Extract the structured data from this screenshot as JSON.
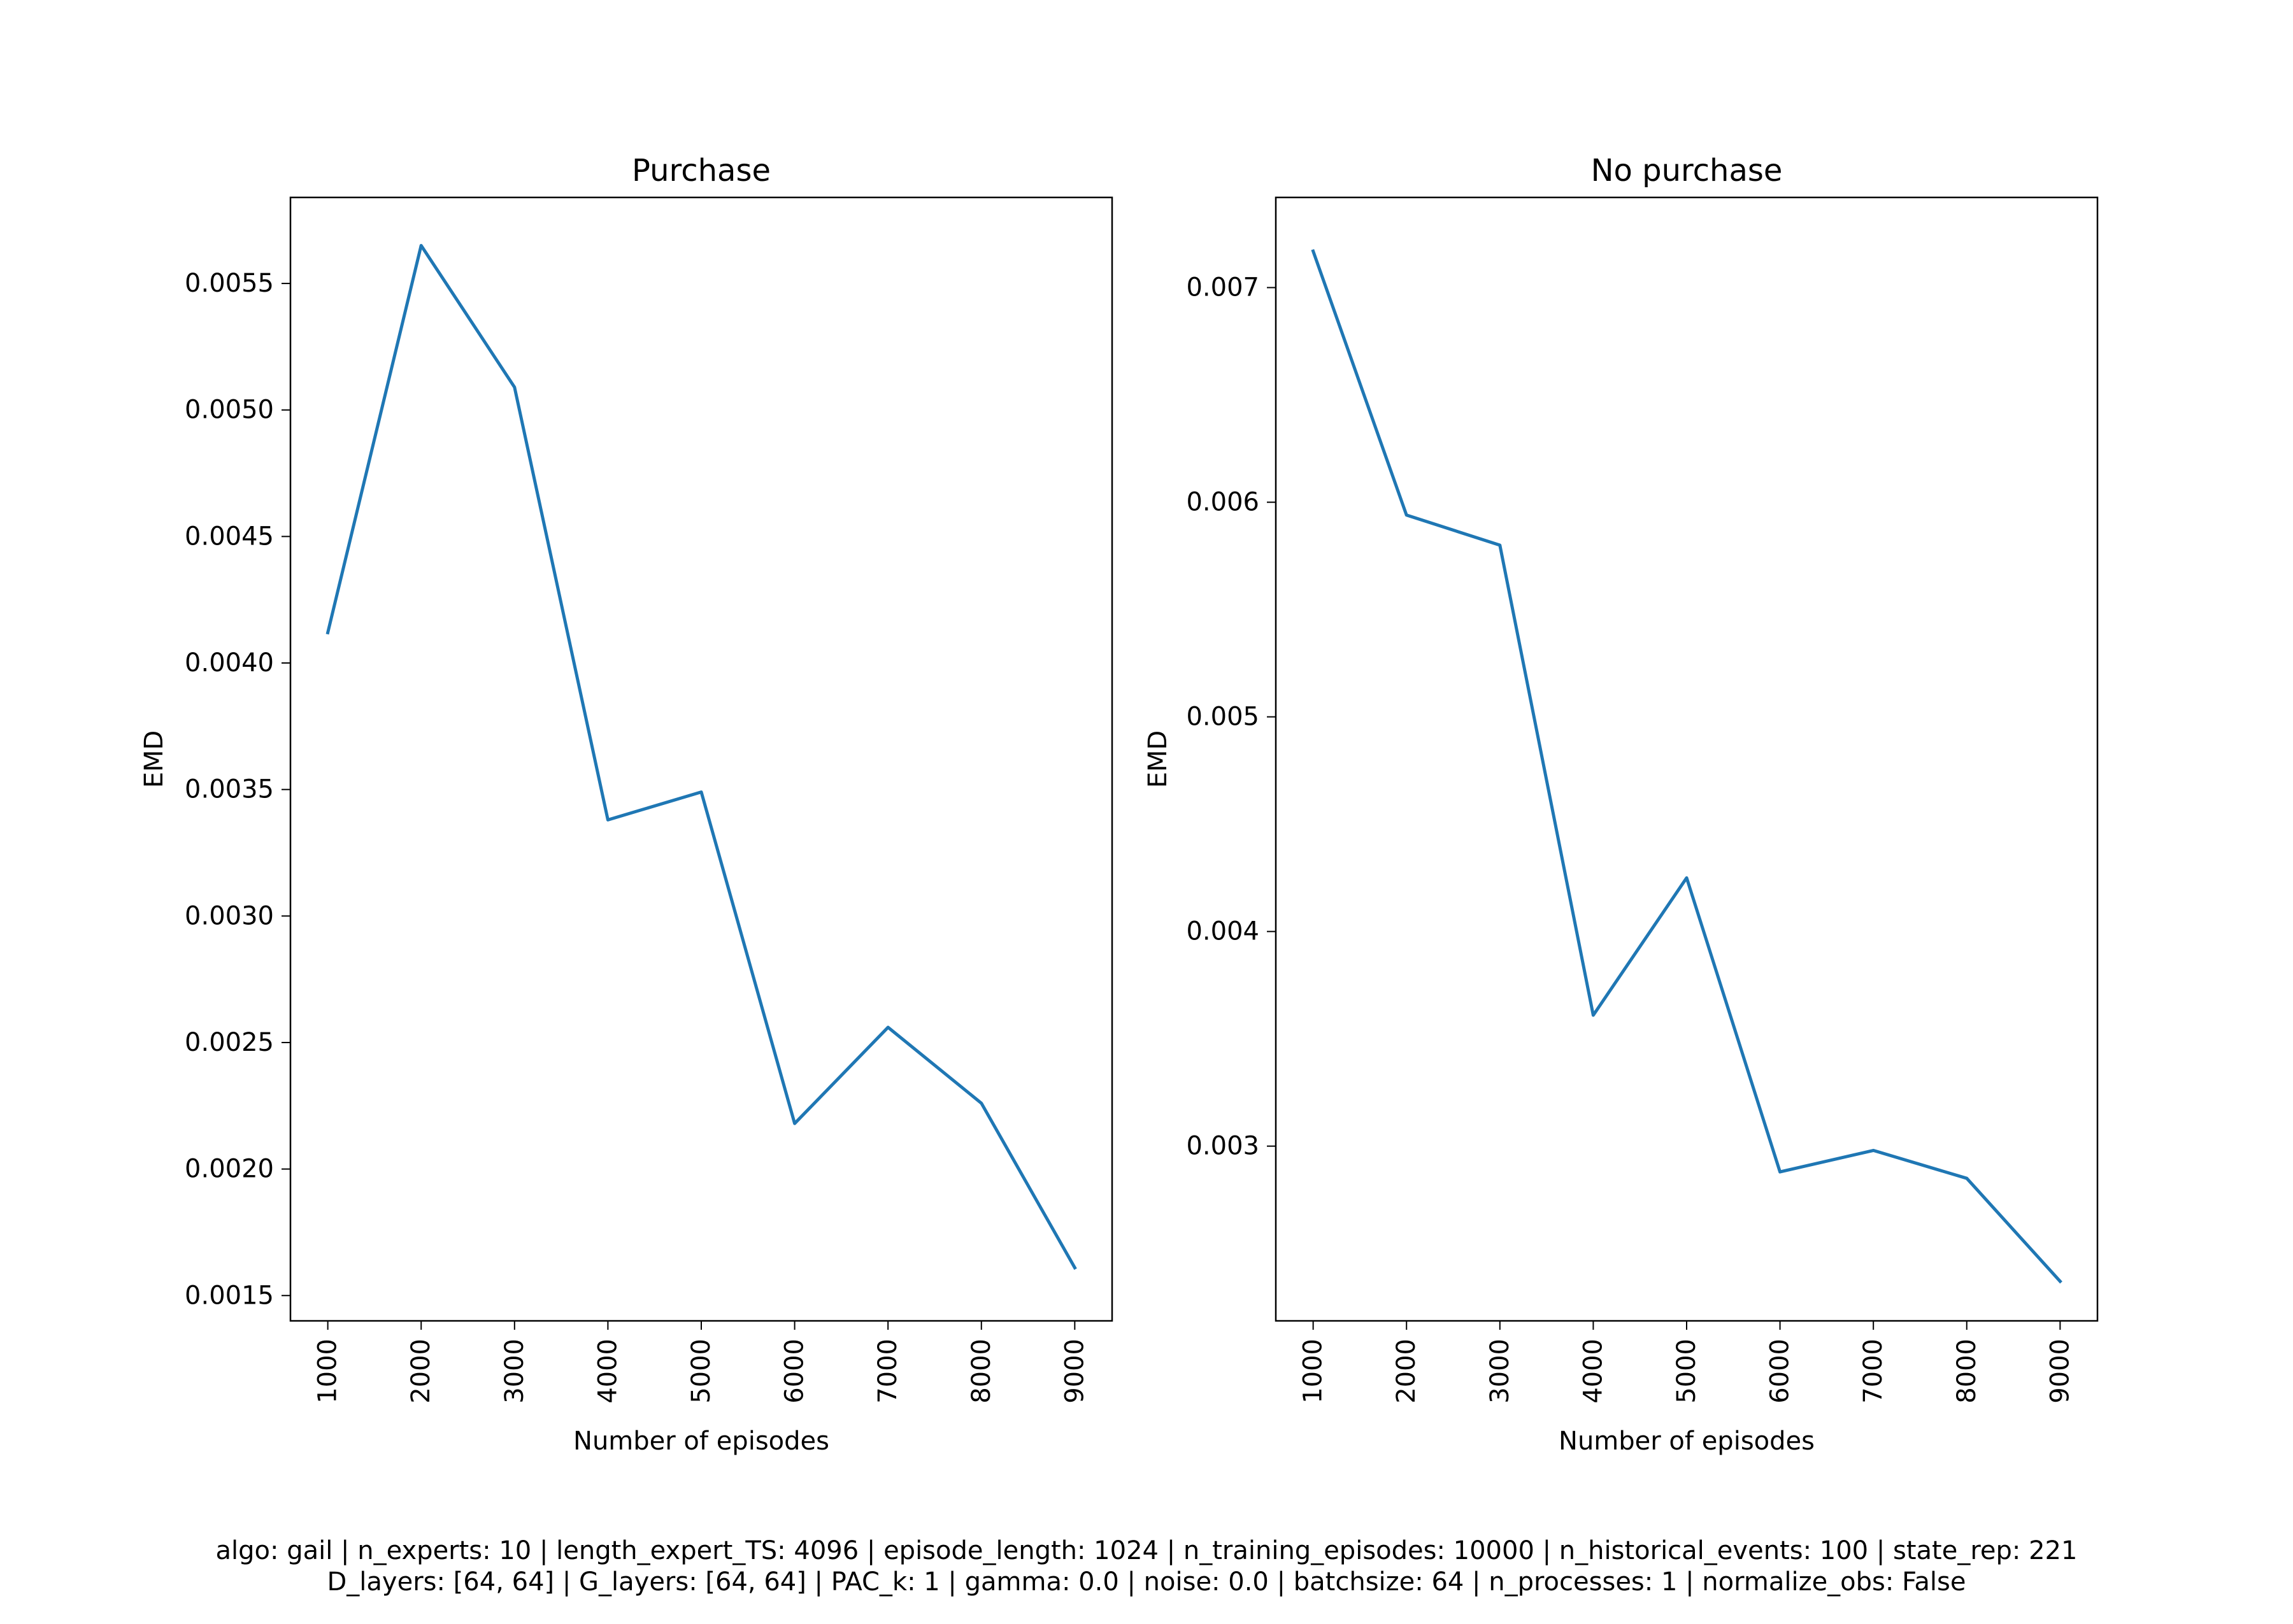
{
  "colors": {
    "line": "#1f77b4",
    "axes": "#000000",
    "background": "#ffffff"
  },
  "chart_data": [
    {
      "type": "line",
      "title": "Purchase",
      "xlabel": "Number of episodes",
      "ylabel": "EMD",
      "x": [
        1000,
        2000,
        3000,
        4000,
        5000,
        6000,
        7000,
        8000,
        9000
      ],
      "x_tick_labels": [
        "1000",
        "2000",
        "3000",
        "4000",
        "5000",
        "6000",
        "7000",
        "8000",
        "9000"
      ],
      "x_tick_rotation": "vertical",
      "series": [
        {
          "values": [
            0.00412,
            0.00565,
            0.00509,
            0.00338,
            0.00349,
            0.00218,
            0.00256,
            0.00226,
            0.00161
          ]
        }
      ],
      "xlim": [
        600,
        9400
      ],
      "ylim": [
        0.0014,
        0.00584
      ],
      "y_ticks": [
        0.0015,
        0.002,
        0.0025,
        0.003,
        0.0035,
        0.004,
        0.0045,
        0.005,
        0.0055
      ],
      "y_tick_labels": [
        "0.0015",
        "0.0020",
        "0.0025",
        "0.0030",
        "0.0035",
        "0.0040",
        "0.0045",
        "0.0050",
        "0.0055"
      ],
      "grid": false,
      "legend": false
    },
    {
      "type": "line",
      "title": "No purchase",
      "xlabel": "Number of episodes",
      "ylabel": "EMD",
      "x": [
        1000,
        2000,
        3000,
        4000,
        5000,
        6000,
        7000,
        8000,
        9000
      ],
      "x_tick_labels": [
        "1000",
        "2000",
        "3000",
        "4000",
        "5000",
        "6000",
        "7000",
        "8000",
        "9000"
      ],
      "x_tick_rotation": "vertical",
      "series": [
        {
          "values": [
            0.00717,
            0.00594,
            0.0058,
            0.00361,
            0.00425,
            0.00288,
            0.00298,
            0.00285,
            0.00237
          ]
        }
      ],
      "xlim": [
        600,
        9400
      ],
      "ylim": [
        0.002186,
        0.00742
      ],
      "y_ticks": [
        0.003,
        0.004,
        0.005,
        0.006,
        0.007
      ],
      "y_tick_labels": [
        "0.003",
        "0.004",
        "0.005",
        "0.006",
        "0.007"
      ],
      "grid": false,
      "legend": false
    }
  ],
  "caption": {
    "line1": "algo: gail | n_experts: 10 | length_expert_TS: 4096 | episode_length: 1024 | n_training_episodes: 10000 | n_historical_events: 100 | state_rep: 221",
    "line2": "D_layers: [64, 64] | G_layers: [64, 64] | PAC_k: 1 | gamma: 0.0 | noise: 0.0 | batchsize: 64 | n_processes: 1 | normalize_obs: False"
  }
}
